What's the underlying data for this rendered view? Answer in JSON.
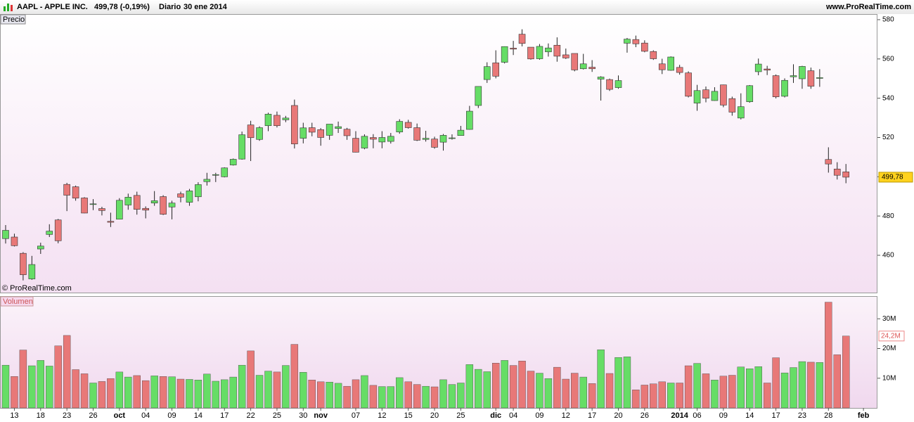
{
  "header": {
    "symbol": "AAPL - APPLE INC.",
    "quote": "499,78 (-0,19%)",
    "period": "Diario",
    "date": "30 ene 2014",
    "site": "www.ProRealTime.com"
  },
  "chart_data": [
    {
      "type": "candlestick",
      "panel_label": "Precio",
      "watermark": "© ProRealTime.com",
      "last_value_label": "499,78",
      "up_color": "#66dd66",
      "down_color": "#e87878",
      "ylim": [
        441,
        582.5
      ],
      "yticks": [
        460,
        480,
        500,
        520,
        540,
        560,
        580
      ],
      "x_end_label": "feb",
      "categories": [
        null,
        "13",
        null,
        null,
        "18",
        null,
        null,
        "23",
        null,
        null,
        "26",
        null,
        null,
        "oct",
        null,
        null,
        "04",
        null,
        null,
        "09",
        null,
        null,
        "14",
        null,
        null,
        "17",
        null,
        null,
        "22",
        null,
        null,
        "25",
        null,
        null,
        "30",
        null,
        "nov",
        null,
        null,
        null,
        "07",
        null,
        null,
        "12",
        null,
        null,
        "15",
        null,
        null,
        "20",
        null,
        null,
        "25",
        null,
        null,
        null,
        "dic",
        null,
        "04",
        null,
        null,
        "09",
        null,
        null,
        "12",
        null,
        null,
        "17",
        null,
        null,
        "20",
        null,
        null,
        "26",
        null,
        null,
        null,
        "2014",
        null,
        "06",
        null,
        null,
        "09",
        null,
        null,
        "14",
        null,
        null,
        "17",
        null,
        null,
        "23",
        null,
        null,
        "28",
        null,
        null
      ],
      "open": [
        468.5,
        469.3,
        461.0,
        447.96,
        463.2,
        470.6,
        478.0,
        496.1,
        494.9,
        489.2,
        486.0,
        483.8,
        477.3,
        478.4,
        485.6,
        490.5,
        483.9,
        486.6,
        489.9,
        484.6,
        491.3,
        486.99,
        489.8,
        497.5,
        500.8,
        499.98,
        505.99,
        509.0,
        526.4,
        519.0,
        526.0,
        531.3,
        529.0,
        536.3,
        519.6,
        525.0,
        524.0,
        521.1,
        524.6,
        524.2,
        519.6,
        514.6,
        519.99,
        517.7,
        518.0,
        522.8,
        527.7,
        525.0,
        519.0,
        519.2,
        517.6,
        519.5,
        521.0,
        524.1,
        536.3,
        549.5,
        558.0,
        558.3,
        565.5,
        572.6,
        566.0,
        560.1,
        563.6,
        567.0,
        562.1,
        562.8,
        555.0,
        555.8,
        549.7,
        549.5,
        545.4,
        568.0,
        569.9,
        568.1,
        563.8,
        557.5,
        554.2,
        555.7,
        552.9,
        537.5,
        544.3,
        538.8,
        546.8,
        539.8,
        529.9,
        538.2,
        553.5,
        554.9,
        551.5,
        540.99,
        550.9,
        549.9,
        554.0,
        550.1,
        508.8,
        503.95,
        502.5
      ],
      "high": [
        475.4,
        471.0,
        461.6,
        459.7,
        466.4,
        475.8,
        478.5,
        496.9,
        495.5,
        489.6,
        488.6,
        484.7,
        481.7,
        489.1,
        491.4,
        492.4,
        484.9,
        492.7,
        490.6,
        487.8,
        492.4,
        493.8,
        497.2,
        502.0,
        502.0,
        504.8,
        509.3,
        523.0,
        528.5,
        525.7,
        532.6,
        533.2,
        531.0,
        539.3,
        527.5,
        527.5,
        524.8,
        526.8,
        528.1,
        524.9,
        523.2,
        521.6,
        521.7,
        523.2,
        522.3,
        529.3,
        529.0,
        527.1,
        523.4,
        520.4,
        521.8,
        521.6,
        525.9,
        536.1,
        546.0,
        558.3,
        564.4,
        566.4,
        569.2,
        575.1,
        566.0,
        567.6,
        567.9,
        571.0,
        565.3,
        562.8,
        562.6,
        559.4,
        551.2,
        550.0,
        551.6,
        570.7,
        571.9,
        569.5,
        564.4,
        560.1,
        561.3,
        557.0,
        553.7,
        546.8,
        545.96,
        545.6,
        546.9,
        540.8,
        542.5,
        546.7,
        560.2,
        556.5,
        552.1,
        550.1,
        557.3,
        556.5,
        555.6,
        554.8,
        515.0,
        507.4,
        506.5
      ],
      "low": [
        466.0,
        464.5,
        447.2,
        447.5,
        460.7,
        469.3,
        466.1,
        482.5,
        487.8,
        481.4,
        483.0,
        480.3,
        474.4,
        478.4,
        483.2,
        480.7,
        478.8,
        485.2,
        480.5,
        478.3,
        487.0,
        485.2,
        487.5,
        495.5,
        497.3,
        499.7,
        505.7,
        508.7,
        508.0,
        518.3,
        523.2,
        525.1,
        527.8,
        514.4,
        517.0,
        520.6,
        515.8,
        518.8,
        522.3,
        518.8,
        512.4,
        514.0,
        514.5,
        514.5,
        516.9,
        521.9,
        524.5,
        518.2,
        517.9,
        514.3,
        513.3,
        518.9,
        521.0,
        524.0,
        535.0,
        547.8,
        550.1,
        557.7,
        562.0,
        566.4,
        559.6,
        559.6,
        561.2,
        558.6,
        560.0,
        553.7,
        554.6,
        553.4,
        538.8,
        543.7,
        544.8,
        563.2,
        566.0,
        563.4,
        559.5,
        552.3,
        554.0,
        552.0,
        540.4,
        533.6,
        537.9,
        538.7,
        535.4,
        531.1,
        529.2,
        537.7,
        551.7,
        551.8,
        539.9,
        540.4,
        547.8,
        544.8,
        544.8,
        545.8,
        502.1,
        498.6,
        496.7
      ],
      "close": [
        472.7,
        464.9,
        450.1,
        455.3,
        464.7,
        472.3,
        467.4,
        490.6,
        489.1,
        481.5,
        486.2,
        482.8,
        476.8,
        488.0,
        489.6,
        483.4,
        483.0,
        487.8,
        480.9,
        486.6,
        489.6,
        492.8,
        496.0,
        498.7,
        501.1,
        504.5,
        508.9,
        521.4,
        519.9,
        525.0,
        531.9,
        526.0,
        529.9,
        516.7,
        524.9,
        522.7,
        520.0,
        526.8,
        525.5,
        520.9,
        512.5,
        520.6,
        519.1,
        520.0,
        520.6,
        528.2,
        525.0,
        518.6,
        519.6,
        515.0,
        521.1,
        519.8,
        523.7,
        533.4,
        546.0,
        556.1,
        551.2,
        566.3,
        565.0,
        567.9,
        560.0,
        566.4,
        565.6,
        561.4,
        560.5,
        554.4,
        557.5,
        555.0,
        550.8,
        544.5,
        549.0,
        570.1,
        567.7,
        563.9,
        560.1,
        554.5,
        561.0,
        553.1,
        541.0,
        543.9,
        540.0,
        543.5,
        536.5,
        532.9,
        535.7,
        546.4,
        557.4,
        554.3,
        540.7,
        549.1,
        551.5,
        556.2,
        546.1,
        550.5,
        506.5,
        500.75,
        499.78
      ]
    },
    {
      "type": "bar",
      "panel_label": "Volumen",
      "last_value_label": "24,2M",
      "up_color": "#66dd66",
      "down_color": "#e87878",
      "ylim": [
        0,
        37.4
      ],
      "yticks": [
        {
          "value": 10,
          "label": "10M"
        },
        {
          "value": 20,
          "label": "20M"
        },
        {
          "value": 30,
          "label": "30M"
        }
      ],
      "values": [
        14.4,
        10.6,
        19.5,
        14.2,
        16.0,
        14.1,
        20.9,
        24.4,
        12.9,
        11.5,
        8.4,
        8.9,
        9.9,
        12.1,
        10.4,
        10.9,
        9.2,
        10.8,
        10.6,
        10.5,
        9.7,
        9.6,
        9.4,
        11.4,
        9.0,
        9.5,
        10.4,
        14.4,
        19.2,
        11.0,
        12.4,
        12.1,
        14.3,
        21.4,
        12.0,
        9.4,
        8.8,
        8.7,
        8.3,
        7.3,
        9.5,
        10.9,
        7.6,
        7.2,
        7.2,
        10.2,
        8.8,
        7.9,
        7.3,
        7.1,
        9.5,
        7.9,
        8.4,
        14.6,
        13.0,
        12.2,
        15.1,
        16.0,
        14.3,
        15.8,
        12.4,
        11.7,
        9.9,
        13.7,
        9.7,
        11.7,
        10.4,
        8.2,
        19.6,
        11.6,
        17.0,
        17.2,
        6.1,
        7.7,
        8.1,
        8.8,
        8.4,
        8.4,
        14.2,
        15.0,
        11.5,
        9.4,
        10.7,
        11.0,
        13.8,
        13.2,
        13.9,
        8.4,
        16.9,
        11.8,
        13.6,
        15.6,
        15.4,
        15.3,
        35.6,
        17.9,
        24.2
      ]
    }
  ]
}
